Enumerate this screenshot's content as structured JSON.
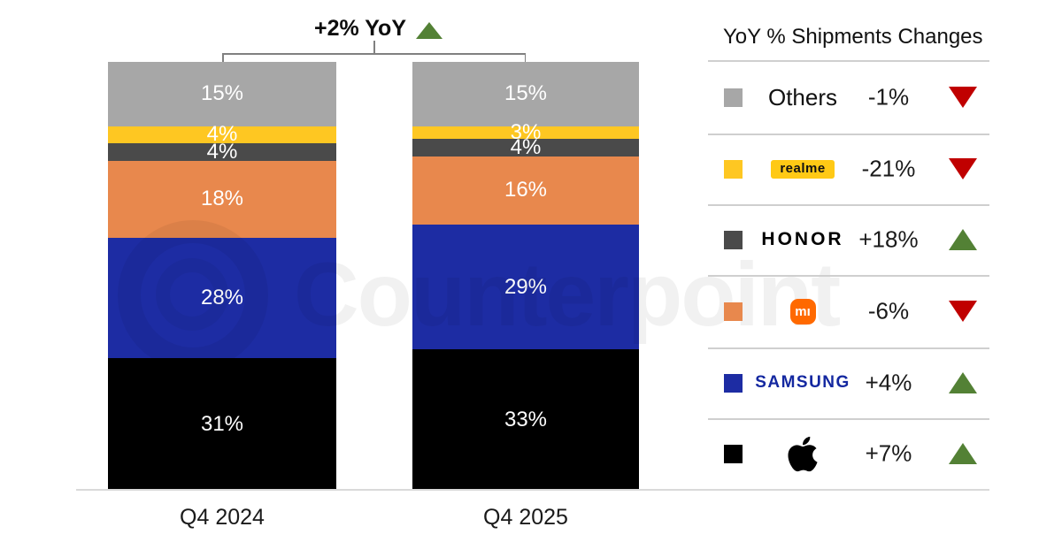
{
  "watermark": "Counterpoint",
  "chart_data": {
    "type": "bar",
    "stacked": true,
    "title": "+2% YoY",
    "title_direction": "up",
    "categories": [
      "Q4 2024",
      "Q4 2025"
    ],
    "unit": "%",
    "ylim": [
      0,
      100
    ],
    "series": [
      {
        "name": "Apple",
        "color": "#000000",
        "values": [
          31,
          33
        ]
      },
      {
        "name": "Samsung",
        "color": "#1D2CA3",
        "values": [
          28,
          29
        ]
      },
      {
        "name": "Xiaomi",
        "color": "#E8884D",
        "values": [
          18,
          16
        ]
      },
      {
        "name": "HONOR",
        "color": "#4A4A4A",
        "values": [
          4,
          4
        ]
      },
      {
        "name": "realme",
        "color": "#FEC722",
        "values": [
          4,
          3
        ]
      },
      {
        "name": "Others",
        "color": "#A7A7A7",
        "values": [
          15,
          15
        ]
      }
    ]
  },
  "legend": {
    "header": "YoY % Shipments Changes",
    "rows": [
      {
        "brand": "Others",
        "change": "-1%",
        "direction": "down"
      },
      {
        "brand": "realme",
        "change": "-21%",
        "direction": "down"
      },
      {
        "brand": "HONOR",
        "change": "+18%",
        "direction": "up"
      },
      {
        "brand": "Xiaomi",
        "logo_text": "mı",
        "change": "-6%",
        "direction": "down"
      },
      {
        "brand": "SAMSUNG",
        "change": "+4%",
        "direction": "up"
      },
      {
        "brand": "Apple",
        "change": "+7%",
        "direction": "up"
      }
    ]
  }
}
